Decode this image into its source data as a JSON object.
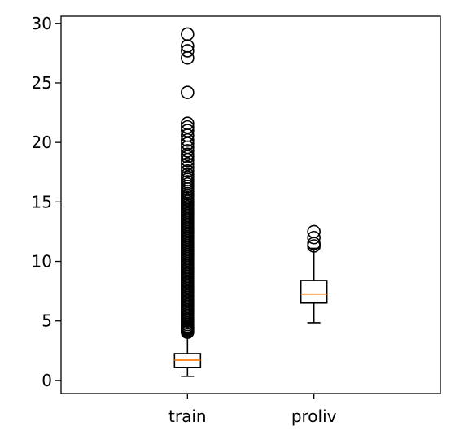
{
  "chart_data": {
    "type": "box",
    "title": "",
    "xlabel": "",
    "ylabel": "",
    "ylim": [
      -1.1,
      30.6
    ],
    "yticks": [
      0,
      5,
      10,
      15,
      20,
      25,
      30
    ],
    "ytick_labels": [
      "0",
      "5",
      "10",
      "15",
      "20",
      "25",
      "30"
    ],
    "grid": false,
    "categories": [
      "train",
      "proliv"
    ],
    "boxes": [
      {
        "label": "train",
        "whislo": 0.35,
        "q1": 1.1,
        "med": 1.7,
        "q3": 2.25,
        "whishi": 4.0,
        "fliers": [
          4.05,
          4.15,
          4.25,
          4.35,
          4.45,
          4.55,
          4.7,
          4.85,
          5.0,
          5.15,
          5.3,
          5.45,
          5.6,
          5.75,
          5.9,
          6.05,
          6.2,
          6.35,
          6.5,
          6.65,
          6.8,
          6.95,
          7.1,
          7.25,
          7.4,
          7.55,
          7.7,
          7.85,
          8.0,
          8.15,
          8.3,
          8.45,
          8.6,
          8.75,
          8.9,
          9.05,
          9.2,
          9.35,
          9.5,
          9.65,
          9.8,
          9.95,
          10.1,
          10.25,
          10.4,
          10.55,
          10.7,
          10.85,
          11.0,
          11.15,
          11.3,
          11.45,
          11.6,
          11.75,
          11.9,
          12.05,
          12.2,
          12.35,
          12.5,
          12.65,
          12.8,
          12.95,
          13.1,
          13.25,
          13.4,
          13.55,
          13.7,
          13.85,
          14.0,
          14.15,
          14.3,
          14.45,
          14.6,
          14.75,
          14.9,
          15.05,
          15.2,
          15.35,
          15.5,
          15.7,
          15.9,
          16.1,
          16.3,
          16.5,
          16.7,
          16.9,
          17.1,
          17.3,
          17.6,
          17.9,
          18.2,
          18.5,
          18.8,
          19.0,
          19.3,
          19.6,
          19.9,
          20.2,
          20.6,
          21.0,
          21.3,
          21.6,
          24.2,
          27.1,
          27.7,
          28.1,
          29.1
        ]
      },
      {
        "label": "proliv",
        "whislo": 4.85,
        "q1": 6.5,
        "med": 7.25,
        "q3": 8.4,
        "whishi": 11.1,
        "fliers": [
          11.3,
          11.5,
          12.0,
          12.5
        ]
      }
    ],
    "colors": {
      "box": "#000000",
      "median": "#ff7f0e",
      "flier": "#000000",
      "axes": "#000000"
    }
  }
}
